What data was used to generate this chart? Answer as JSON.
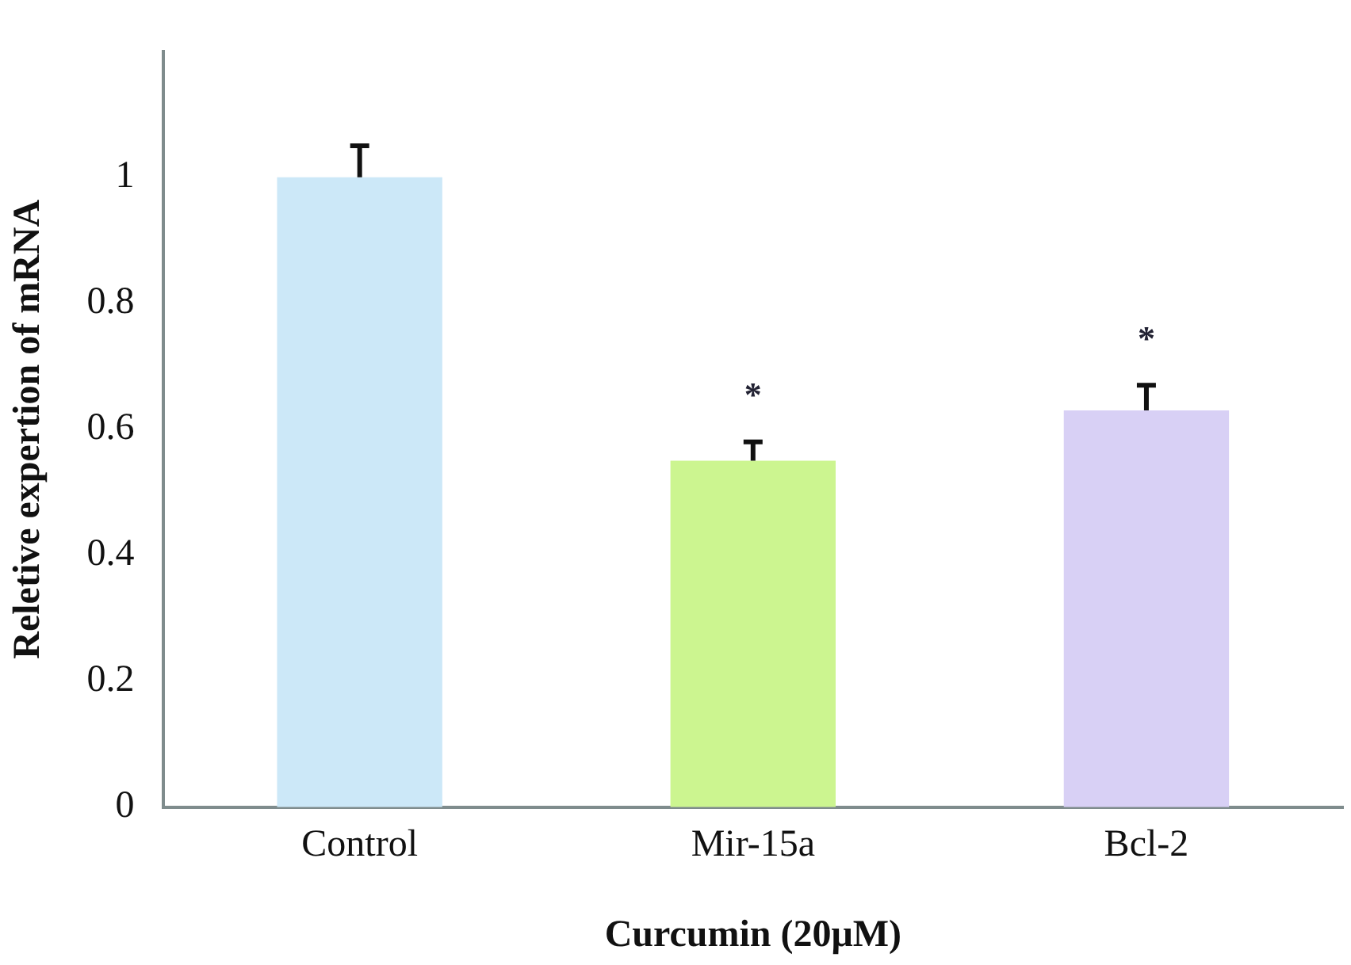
{
  "chart_data": {
    "type": "bar",
    "xlabel": "Curcumin (20μM)",
    "ylabel": "Reletive expertion of mRNA",
    "categories": [
      "Control",
      "Mir-15a",
      "Bcl-2"
    ],
    "values": [
      1,
      0.55,
      0.63
    ],
    "colors": [
      "#cce8f8",
      "#ccf590",
      "#d8d0f5"
    ],
    "errors": [
      [
        1,
        1.05
      ],
      [
        0.55,
        0.58
      ],
      [
        0.63,
        0.67
      ]
    ],
    "ylim": [
      0,
      1.2
    ],
    "yticks": [
      0,
      0.2,
      0.4,
      0.6,
      0.8,
      1
    ],
    "grid": false,
    "legend": false,
    "annotations": [
      "*",
      "*"
    ]
  }
}
